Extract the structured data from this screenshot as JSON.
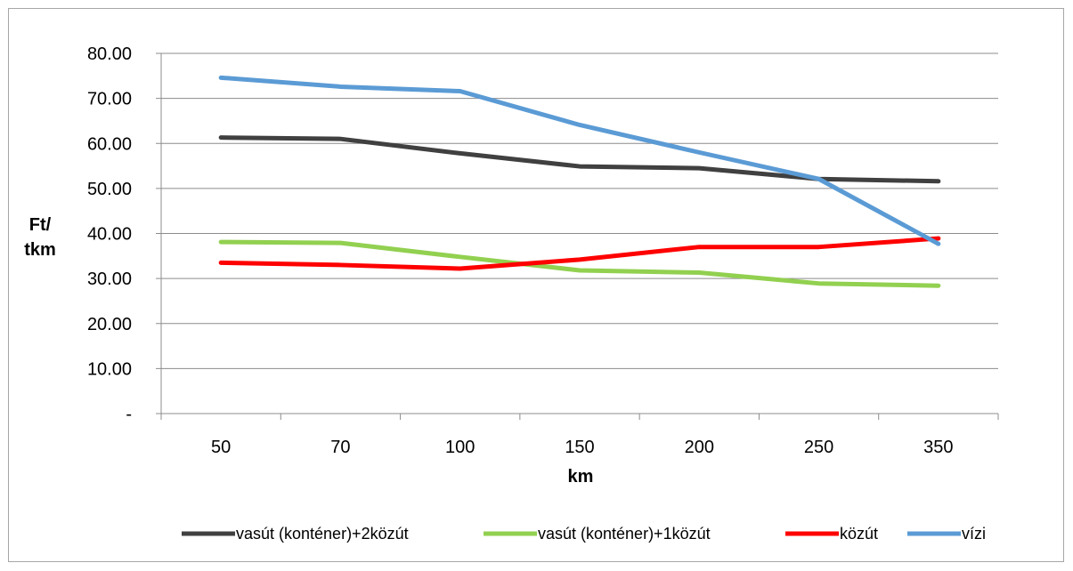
{
  "chart_data": {
    "type": "line",
    "title": "",
    "xlabel": "km",
    "ylabel_lines": [
      "Ft/",
      "tkm"
    ],
    "categories": [
      "50",
      "70",
      "100",
      "150",
      "200",
      "250",
      "350"
    ],
    "y_ticks": [
      {
        "value": 0,
        "label": "-"
      },
      {
        "value": 10,
        "label": "10.00"
      },
      {
        "value": 20,
        "label": "20.00"
      },
      {
        "value": 30,
        "label": "30.00"
      },
      {
        "value": 40,
        "label": "40.00"
      },
      {
        "value": 50,
        "label": "50.00"
      },
      {
        "value": 60,
        "label": "60.00"
      },
      {
        "value": 70,
        "label": "70.00"
      },
      {
        "value": 80,
        "label": "80.00"
      }
    ],
    "ylim": [
      0,
      80
    ],
    "grid": true,
    "legend_position": "bottom",
    "series": [
      {
        "name": "vasút (konténer)+2közút",
        "color": "#404040",
        "values": [
          61.3,
          61.0,
          57.8,
          54.9,
          54.5,
          52.1,
          51.6
        ]
      },
      {
        "name": "vasút (konténer)+1közút",
        "color": "#92d050",
        "values": [
          38.1,
          37.9,
          34.8,
          31.8,
          31.3,
          28.9,
          28.4
        ]
      },
      {
        "name": "közút",
        "color": "#ff0000",
        "values": [
          33.5,
          33.0,
          32.2,
          34.2,
          37.0,
          37.0,
          38.9
        ]
      },
      {
        "name": "vízi",
        "color": "#5b9bd5",
        "values": [
          74.6,
          72.6,
          71.6,
          64.1,
          58.0,
          52.1,
          37.7
        ]
      }
    ]
  }
}
